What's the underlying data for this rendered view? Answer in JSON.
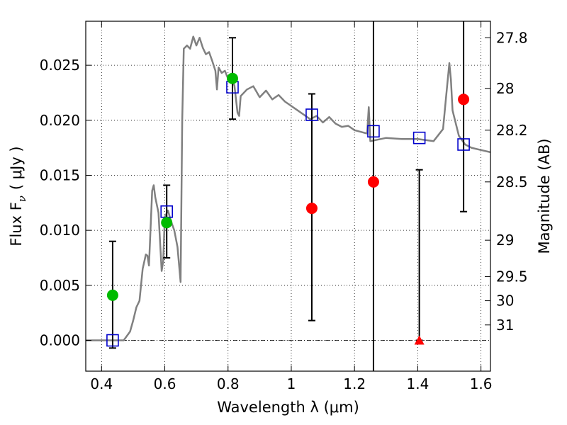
{
  "chart_data": {
    "type": "scatter",
    "xlabel": "Wavelength  λ (μm)",
    "ylabel": "Flux  F",
    "ylabel_sub": "ν",
    "ylabel_unit": "( μJy )",
    "y2label": "Magnitude (AB)",
    "xlim": [
      0.35,
      1.63
    ],
    "ylim": [
      -0.0028,
      0.029
    ],
    "grid": true,
    "x_ticks": [
      {
        "value": 0.4,
        "label": "0.4"
      },
      {
        "value": 0.6,
        "label": "0.6"
      },
      {
        "value": 0.8,
        "label": "0.8"
      },
      {
        "value": 1.0,
        "label": "1"
      },
      {
        "value": 1.2,
        "label": "1.2"
      },
      {
        "value": 1.4,
        "label": "1.4"
      },
      {
        "value": 1.6,
        "label": "1.6"
      }
    ],
    "y_ticks": [
      {
        "value": 0.0,
        "label": "0.000"
      },
      {
        "value": 0.005,
        "label": "0.005"
      },
      {
        "value": 0.01,
        "label": "0.010"
      },
      {
        "value": 0.015,
        "label": "0.015"
      },
      {
        "value": 0.02,
        "label": "0.020"
      },
      {
        "value": 0.025,
        "label": "0.025"
      }
    ],
    "y2_ticks": [
      {
        "flux": 0.0275,
        "label": "27.8"
      },
      {
        "flux": 0.0229,
        "label": "28"
      },
      {
        "flux": 0.0191,
        "label": "28.2"
      },
      {
        "flux": 0.0144,
        "label": "28.5"
      },
      {
        "flux": 0.0091,
        "label": "29"
      },
      {
        "flux": 0.0058,
        "label": "29.5"
      },
      {
        "flux": 0.0036,
        "label": "30"
      },
      {
        "flux": 0.0014,
        "label": "31"
      }
    ],
    "zero_line": 0.0,
    "model_sed": {
      "color": "#808080",
      "points": [
        [
          0.35,
          0.0
        ],
        [
          0.47,
          0.0
        ],
        [
          0.49,
          0.0008
        ],
        [
          0.5,
          0.0018
        ],
        [
          0.51,
          0.003
        ],
        [
          0.52,
          0.0036
        ],
        [
          0.53,
          0.0065
        ],
        [
          0.54,
          0.0078
        ],
        [
          0.545,
          0.0077
        ],
        [
          0.55,
          0.0068
        ],
        [
          0.56,
          0.0136
        ],
        [
          0.565,
          0.0141
        ],
        [
          0.57,
          0.013
        ],
        [
          0.58,
          0.0116
        ],
        [
          0.59,
          0.0063
        ],
        [
          0.595,
          0.0072
        ],
        [
          0.6,
          0.0112
        ],
        [
          0.61,
          0.0118
        ],
        [
          0.62,
          0.0108
        ],
        [
          0.63,
          0.01
        ],
        [
          0.64,
          0.0085
        ],
        [
          0.65,
          0.0053
        ],
        [
          0.655,
          0.02
        ],
        [
          0.66,
          0.0265
        ],
        [
          0.67,
          0.0268
        ],
        [
          0.68,
          0.0265
        ],
        [
          0.69,
          0.0276
        ],
        [
          0.7,
          0.0268
        ],
        [
          0.71,
          0.0275
        ],
        [
          0.72,
          0.0266
        ],
        [
          0.73,
          0.026
        ],
        [
          0.74,
          0.0262
        ],
        [
          0.75,
          0.0254
        ],
        [
          0.76,
          0.0245
        ],
        [
          0.765,
          0.0228
        ],
        [
          0.77,
          0.0248
        ],
        [
          0.78,
          0.0243
        ],
        [
          0.79,
          0.0245
        ],
        [
          0.8,
          0.0238
        ],
        [
          0.82,
          0.0232
        ],
        [
          0.83,
          0.0207
        ],
        [
          0.835,
          0.0204
        ],
        [
          0.84,
          0.0222
        ],
        [
          0.86,
          0.0228
        ],
        [
          0.88,
          0.0231
        ],
        [
          0.9,
          0.0221
        ],
        [
          0.92,
          0.0227
        ],
        [
          0.94,
          0.0219
        ],
        [
          0.96,
          0.0223
        ],
        [
          0.98,
          0.0217
        ],
        [
          1.0,
          0.0213
        ],
        [
          1.02,
          0.0209
        ],
        [
          1.04,
          0.0205
        ],
        [
          1.06,
          0.0201
        ],
        [
          1.08,
          0.0204
        ],
        [
          1.1,
          0.0198
        ],
        [
          1.12,
          0.0203
        ],
        [
          1.14,
          0.0197
        ],
        [
          1.16,
          0.0194
        ],
        [
          1.18,
          0.0195
        ],
        [
          1.2,
          0.0191
        ],
        [
          1.24,
          0.0188
        ],
        [
          1.245,
          0.0212
        ],
        [
          1.25,
          0.0181
        ],
        [
          1.3,
          0.0184
        ],
        [
          1.35,
          0.0183
        ],
        [
          1.4,
          0.0183
        ],
        [
          1.45,
          0.0181
        ],
        [
          1.48,
          0.0192
        ],
        [
          1.49,
          0.0222
        ],
        [
          1.5,
          0.0252
        ],
        [
          1.505,
          0.0237
        ],
        [
          1.51,
          0.0209
        ],
        [
          1.53,
          0.0186
        ],
        [
          1.55,
          0.0178
        ],
        [
          1.57,
          0.0175
        ],
        [
          1.6,
          0.0173
        ],
        [
          1.63,
          0.0171
        ]
      ]
    },
    "series": [
      {
        "marker": "square",
        "color": "#0000cc",
        "points": [
          {
            "x": 0.435,
            "y": 0.0
          },
          {
            "x": 0.606,
            "y": 0.0117
          },
          {
            "x": 0.814,
            "y": 0.023
          },
          {
            "x": 1.065,
            "y": 0.0205
          },
          {
            "x": 1.26,
            "y": 0.019
          },
          {
            "x": 1.405,
            "y": 0.0184
          },
          {
            "x": 1.545,
            "y": 0.0178
          }
        ]
      },
      {
        "marker": "circle",
        "color": "#00bb00",
        "points": [
          {
            "x": 0.435,
            "y": 0.0041
          },
          {
            "x": 0.606,
            "y": 0.0107
          },
          {
            "x": 0.814,
            "y": 0.0238
          }
        ]
      },
      {
        "marker": "circle",
        "color": "#ff0000",
        "points": [
          {
            "x": 1.065,
            "y": 0.012
          },
          {
            "x": 1.26,
            "y": 0.0144
          },
          {
            "x": 1.545,
            "y": 0.0219
          }
        ]
      },
      {
        "marker": "triangle",
        "color": "#ff0000",
        "points": [
          {
            "x": 1.405,
            "y": 0.0
          }
        ]
      }
    ],
    "error_bars": [
      {
        "x": 0.435,
        "low": -0.0007,
        "high": 0.009
      },
      {
        "x": 0.606,
        "low": 0.0075,
        "high": 0.0141
      },
      {
        "x": 0.814,
        "low": 0.0201,
        "high": 0.0275
      },
      {
        "x": 1.065,
        "low": 0.0018,
        "high": 0.0224
      },
      {
        "x": 1.26,
        "low": -0.0028,
        "high": 0.029,
        "capless": true
      },
      {
        "x": 1.405,
        "low": 0.0,
        "high": 0.0155
      },
      {
        "x": 1.545,
        "low": 0.0117,
        "high": 0.029,
        "cap_high": false
      }
    ]
  }
}
